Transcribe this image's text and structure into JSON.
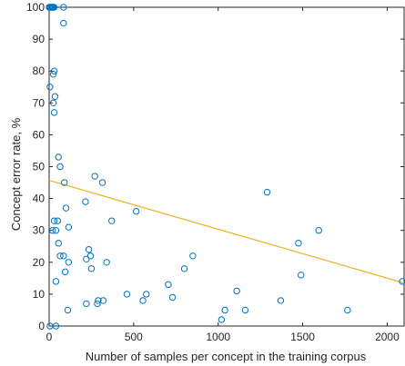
{
  "chart_data": {
    "type": "scatter",
    "xlabel": "Number of samples per concept in the training corpus",
    "ylabel": "Concept error rate, %",
    "xlim": [
      0,
      2100
    ],
    "ylim": [
      0,
      100
    ],
    "x_ticks": [
      0,
      500,
      1000,
      1500,
      2000
    ],
    "y_ticks": [
      0,
      10,
      20,
      30,
      40,
      50,
      60,
      70,
      80,
      90,
      100
    ],
    "x_tick_labels": [
      "0",
      "500",
      "1000",
      "1500",
      "2000"
    ],
    "y_tick_labels": [
      "0",
      "10",
      "20",
      "30",
      "40",
      "50",
      "60",
      "70",
      "80",
      "90",
      "100"
    ],
    "grid": false,
    "box": true,
    "series": [
      {
        "kind": "scatter",
        "marker": "open-circle",
        "color": "#0072BD",
        "points": [
          [
            0,
            100
          ],
          [
            5,
            100
          ],
          [
            10,
            100
          ],
          [
            15,
            100
          ],
          [
            20,
            100
          ],
          [
            25,
            100
          ],
          [
            30,
            100
          ],
          [
            85,
            100
          ],
          [
            85,
            95
          ],
          [
            30,
            80
          ],
          [
            25,
            79
          ],
          [
            5,
            75
          ],
          [
            35,
            72
          ],
          [
            25,
            70
          ],
          [
            30,
            67
          ],
          [
            55,
            53
          ],
          [
            65,
            50
          ],
          [
            90,
            45
          ],
          [
            270,
            47
          ],
          [
            315,
            45
          ],
          [
            1290,
            42
          ],
          [
            30,
            33
          ],
          [
            50,
            33
          ],
          [
            215,
            39
          ],
          [
            100,
            37
          ],
          [
            370,
            33
          ],
          [
            515,
            36
          ],
          [
            20,
            30
          ],
          [
            40,
            30
          ],
          [
            115,
            31
          ],
          [
            55,
            26
          ],
          [
            65,
            22
          ],
          [
            85,
            22
          ],
          [
            235,
            24
          ],
          [
            220,
            21
          ],
          [
            245,
            22
          ],
          [
            1475,
            26
          ],
          [
            1595,
            30
          ],
          [
            115,
            20
          ],
          [
            95,
            17
          ],
          [
            250,
            18
          ],
          [
            340,
            20
          ],
          [
            850,
            22
          ],
          [
            800,
            18
          ],
          [
            40,
            14
          ],
          [
            1490,
            16
          ],
          [
            705,
            13
          ],
          [
            1110,
            11
          ],
          [
            575,
            10
          ],
          [
            730,
            9
          ],
          [
            460,
            10
          ],
          [
            555,
            8
          ],
          [
            290,
            8
          ],
          [
            320,
            8
          ],
          [
            1370,
            8
          ],
          [
            220,
            7
          ],
          [
            285,
            7
          ],
          [
            110,
            5
          ],
          [
            1040,
            5
          ],
          [
            1160,
            5
          ],
          [
            1765,
            5
          ],
          [
            1020,
            2
          ],
          [
            5,
            0
          ],
          [
            40,
            0
          ],
          [
            2090,
            14
          ]
        ]
      },
      {
        "kind": "line",
        "color": "#EDB120",
        "points": [
          [
            0,
            45.7
          ],
          [
            2100,
            13.5
          ]
        ]
      }
    ]
  }
}
